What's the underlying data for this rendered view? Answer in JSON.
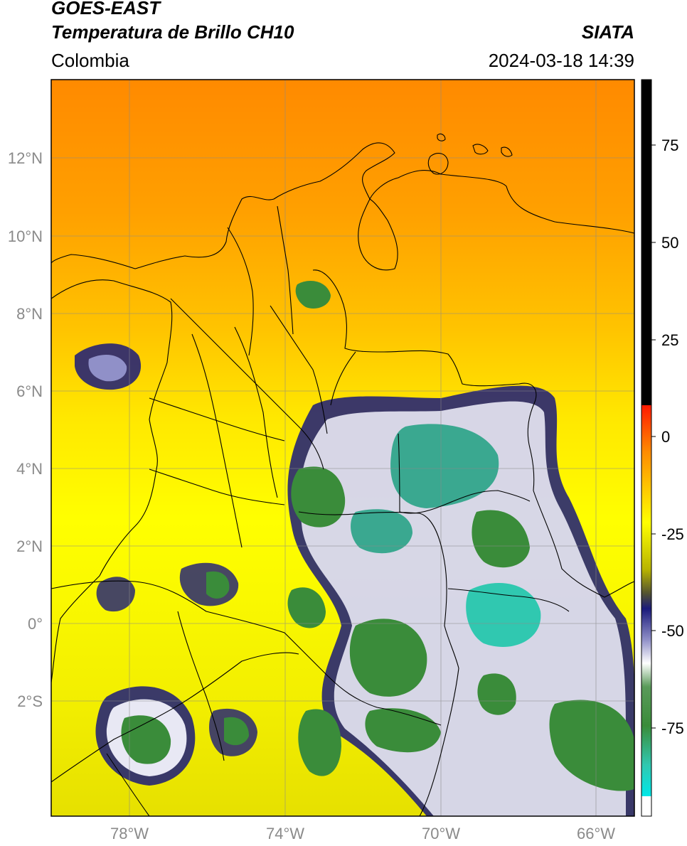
{
  "header": {
    "satellite": "GOES-EAST",
    "product": "Temperatura de Brillo CH10",
    "region": "Colombia",
    "agency": "SIATA",
    "datetime": "2024-03-18 14:39"
  },
  "map": {
    "lat_ticks": [
      "12°N",
      "10°N",
      "8°N",
      "6°N",
      "4°N",
      "2°N",
      "0°",
      "2°S"
    ],
    "lon_ticks": [
      "78°W",
      "74°W",
      "70°W",
      "66°W"
    ],
    "grid": true
  },
  "colorbar": {
    "ticks": [
      "75",
      "50",
      "25",
      "0",
      "-25",
      "-50",
      "-75"
    ],
    "colors": {
      "warm_black": "#000000",
      "red": "#ff1a00",
      "orange": "#ff8c00",
      "yellow": "#ffff00",
      "olive": "#b8b400",
      "navy": "#1a1a7a",
      "white": "#ffffff",
      "green": "#3a8c3a",
      "teal": "#30c8b0",
      "cyan": "#00e8e8"
    }
  }
}
